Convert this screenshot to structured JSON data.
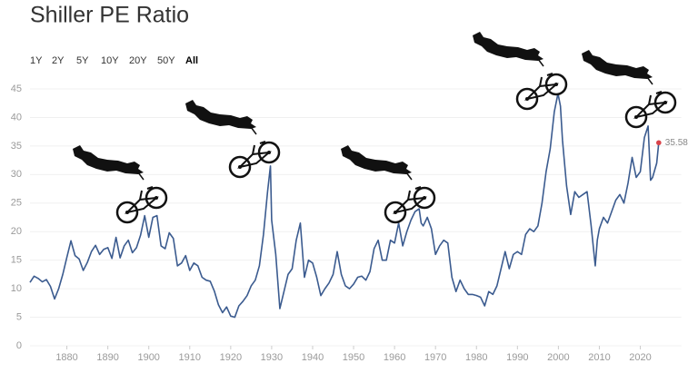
{
  "chart_data": {
    "type": "line",
    "title": "Shiller PE Ratio",
    "range_buttons": [
      "1Y",
      "2Y",
      "5Y",
      "10Y",
      "20Y",
      "50Y",
      "All"
    ],
    "selected_range": "All",
    "color": "#3b5b8f",
    "highlight_color": "#d9434a",
    "grid": true,
    "xlim": [
      1871,
      2030
    ],
    "ylim": [
      0,
      45
    ],
    "xticks": [
      1880,
      1890,
      1900,
      1910,
      1920,
      1930,
      1940,
      1950,
      1960,
      1970,
      1980,
      1990,
      2000,
      2010,
      2020
    ],
    "yticks": [
      0,
      5,
      10,
      15,
      20,
      25,
      30,
      35,
      40,
      45
    ],
    "x": [
      1871,
      1872,
      1873,
      1874,
      1875,
      1876,
      1877,
      1878,
      1879,
      1880,
      1881,
      1882,
      1883,
      1884,
      1885,
      1886,
      1887,
      1888,
      1889,
      1890,
      1891,
      1892,
      1893,
      1894,
      1895,
      1896,
      1897,
      1898,
      1899,
      1900,
      1901,
      1902,
      1903,
      1904,
      1905,
      1906,
      1907,
      1908,
      1909,
      1910,
      1911,
      1912,
      1913,
      1914,
      1915,
      1916,
      1917,
      1918,
      1919,
      1920,
      1921,
      1922,
      1923,
      1924,
      1925,
      1926,
      1927,
      1928,
      1929,
      1929.7,
      1930,
      1931,
      1932,
      1933,
      1934,
      1935,
      1936,
      1937,
      1938,
      1939,
      1940,
      1941,
      1942,
      1943,
      1944,
      1945,
      1946,
      1947,
      1948,
      1949,
      1950,
      1951,
      1952,
      1953,
      1954,
      1955,
      1956,
      1957,
      1958,
      1959,
      1960,
      1961,
      1962,
      1963,
      1964,
      1965,
      1966,
      1966.5,
      1967,
      1968,
      1969,
      1970,
      1971,
      1972,
      1973,
      1974,
      1975,
      1976,
      1977,
      1978,
      1979,
      1980,
      1981,
      1982,
      1983,
      1984,
      1985,
      1986,
      1987,
      1988,
      1989,
      1990,
      1991,
      1992,
      1993,
      1994,
      1995,
      1996,
      1997,
      1998,
      1999,
      1999.9,
      2000.5,
      2001,
      2002,
      2003,
      2004,
      2005,
      2006,
      2007,
      2008,
      2009,
      2009.5,
      2010,
      2011,
      2012,
      2013,
      2014,
      2015,
      2016,
      2017,
      2018,
      2019,
      2020,
      2021,
      2021.9,
      2022.5,
      2023,
      2024,
      2024.5
    ],
    "values": [
      11.1,
      12.2,
      11.8,
      11.2,
      11.6,
      10.4,
      8.2,
      10.0,
      12.5,
      15.5,
      18.4,
      15.8,
      15.2,
      13.2,
      14.6,
      16.5,
      17.6,
      16.0,
      16.9,
      17.2,
      15.3,
      19.0,
      15.4,
      17.5,
      18.5,
      16.3,
      17.2,
      19.4,
      22.8,
      19.0,
      22.5,
      22.8,
      17.5,
      17.0,
      19.8,
      18.8,
      14.0,
      14.5,
      15.8,
      13.2,
      14.5,
      14.0,
      12.0,
      11.5,
      11.3,
      9.6,
      7.2,
      5.8,
      6.8,
      5.2,
      5.0,
      7.0,
      7.8,
      8.8,
      10.5,
      11.5,
      14.0,
      19.5,
      27.0,
      31.5,
      22.0,
      16.0,
      6.5,
      9.5,
      12.5,
      13.5,
      18.5,
      21.5,
      12.0,
      15.0,
      14.5,
      12.0,
      8.8,
      10.0,
      11.0,
      12.5,
      16.5,
      12.5,
      10.5,
      10.0,
      10.8,
      12.0,
      12.2,
      11.5,
      13.0,
      17.0,
      18.5,
      15.0,
      15.0,
      18.5,
      18.0,
      21.5,
      17.5,
      20.0,
      22.0,
      23.5,
      24.0,
      21.5,
      21.0,
      22.5,
      20.5,
      16.0,
      17.5,
      18.5,
      18.0,
      12.0,
      9.5,
      11.5,
      10.0,
      9.0,
      9.0,
      8.8,
      8.5,
      7.0,
      9.5,
      9.0,
      10.5,
      13.5,
      16.5,
      13.5,
      16.0,
      16.5,
      16.0,
      19.5,
      20.5,
      20.0,
      21.0,
      25.0,
      30.5,
      34.5,
      41.0,
      44.2,
      42.0,
      36.0,
      28.0,
      23.0,
      27.0,
      26.0,
      26.5,
      27.0,
      21.0,
      14.0,
      18.5,
      20.5,
      22.5,
      21.5,
      23.5,
      25.5,
      26.5,
      25.0,
      28.5,
      33.0,
      29.5,
      30.5,
      36.5,
      38.5,
      29.0,
      29.5,
      32.0,
      35.58
    ]
  }
}
